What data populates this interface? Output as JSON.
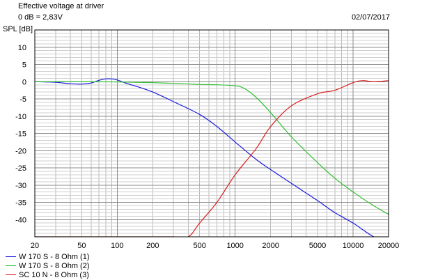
{
  "header": {
    "title": "Effective voltage at driver",
    "reference": "0 dB = 2,83V",
    "date": "02/07/2017"
  },
  "chart_data": {
    "type": "line",
    "ylabel": "SPL [dB]",
    "xlabel": "",
    "xscale": "log",
    "xlim": [
      20,
      20000
    ],
    "ylim": [
      -45,
      15
    ],
    "grid": true,
    "legend_placement": "bottom-left",
    "x_tick_labels": [
      "20",
      "50",
      "100",
      "200",
      "500",
      "1000",
      "2000",
      "5000",
      "10000",
      "20000"
    ],
    "x_tick_values": [
      20,
      50,
      100,
      200,
      500,
      1000,
      2000,
      5000,
      10000,
      20000
    ],
    "y_tick_labels": [
      "10",
      "5",
      "0",
      "-5",
      "-10",
      "-15",
      "-20",
      "-25",
      "-30",
      "-35",
      "-40"
    ],
    "y_tick_values": [
      10,
      5,
      0,
      -5,
      -10,
      -15,
      -20,
      -25,
      -30,
      -35,
      -40
    ],
    "series": [
      {
        "name": "W 170 S - 8 Ohm (1)",
        "color": "#1a1adf",
        "x": [
          20,
          30,
          40,
          50,
          60,
          70,
          80,
          90,
          100,
          120,
          150,
          200,
          300,
          500,
          700,
          1000,
          1500,
          2000,
          3000,
          5000,
          7000,
          10000,
          15000,
          20000
        ],
        "y": [
          0,
          -0.2,
          -0.6,
          -0.7,
          -0.4,
          0.4,
          0.8,
          0.8,
          0.5,
          -0.5,
          -1.5,
          -3,
          -5.8,
          -9.5,
          -13,
          -17.5,
          -22.5,
          -25.5,
          -29.5,
          -34.5,
          -38,
          -41,
          -45,
          -46
        ]
      },
      {
        "name": "W 170 S - 8 Ohm (2)",
        "color": "#2fbf2f",
        "x": [
          20,
          50,
          100,
          200,
          300,
          500,
          700,
          1000,
          1200,
          1500,
          2000,
          3000,
          5000,
          7000,
          10000,
          15000,
          20000
        ],
        "y": [
          0,
          0,
          -0.1,
          -0.3,
          -0.5,
          -0.8,
          -0.9,
          -1.2,
          -2,
          -4.5,
          -9,
          -16,
          -23.5,
          -28,
          -32,
          -36,
          -38.5
        ]
      },
      {
        "name": "SC 10 N - 8 Ohm (3)",
        "color": "#d81e1e",
        "x": [
          20,
          100,
          300,
          400,
          500,
          700,
          1000,
          1500,
          2000,
          3000,
          5000,
          7000,
          10000,
          12000,
          15000,
          20000
        ],
        "y": [
          -45,
          -45,
          -45,
          -45,
          -41,
          -35,
          -27,
          -19.5,
          -13,
          -7,
          -3.5,
          -2.5,
          -0.3,
          0.3,
          0,
          0.3
        ]
      }
    ]
  }
}
